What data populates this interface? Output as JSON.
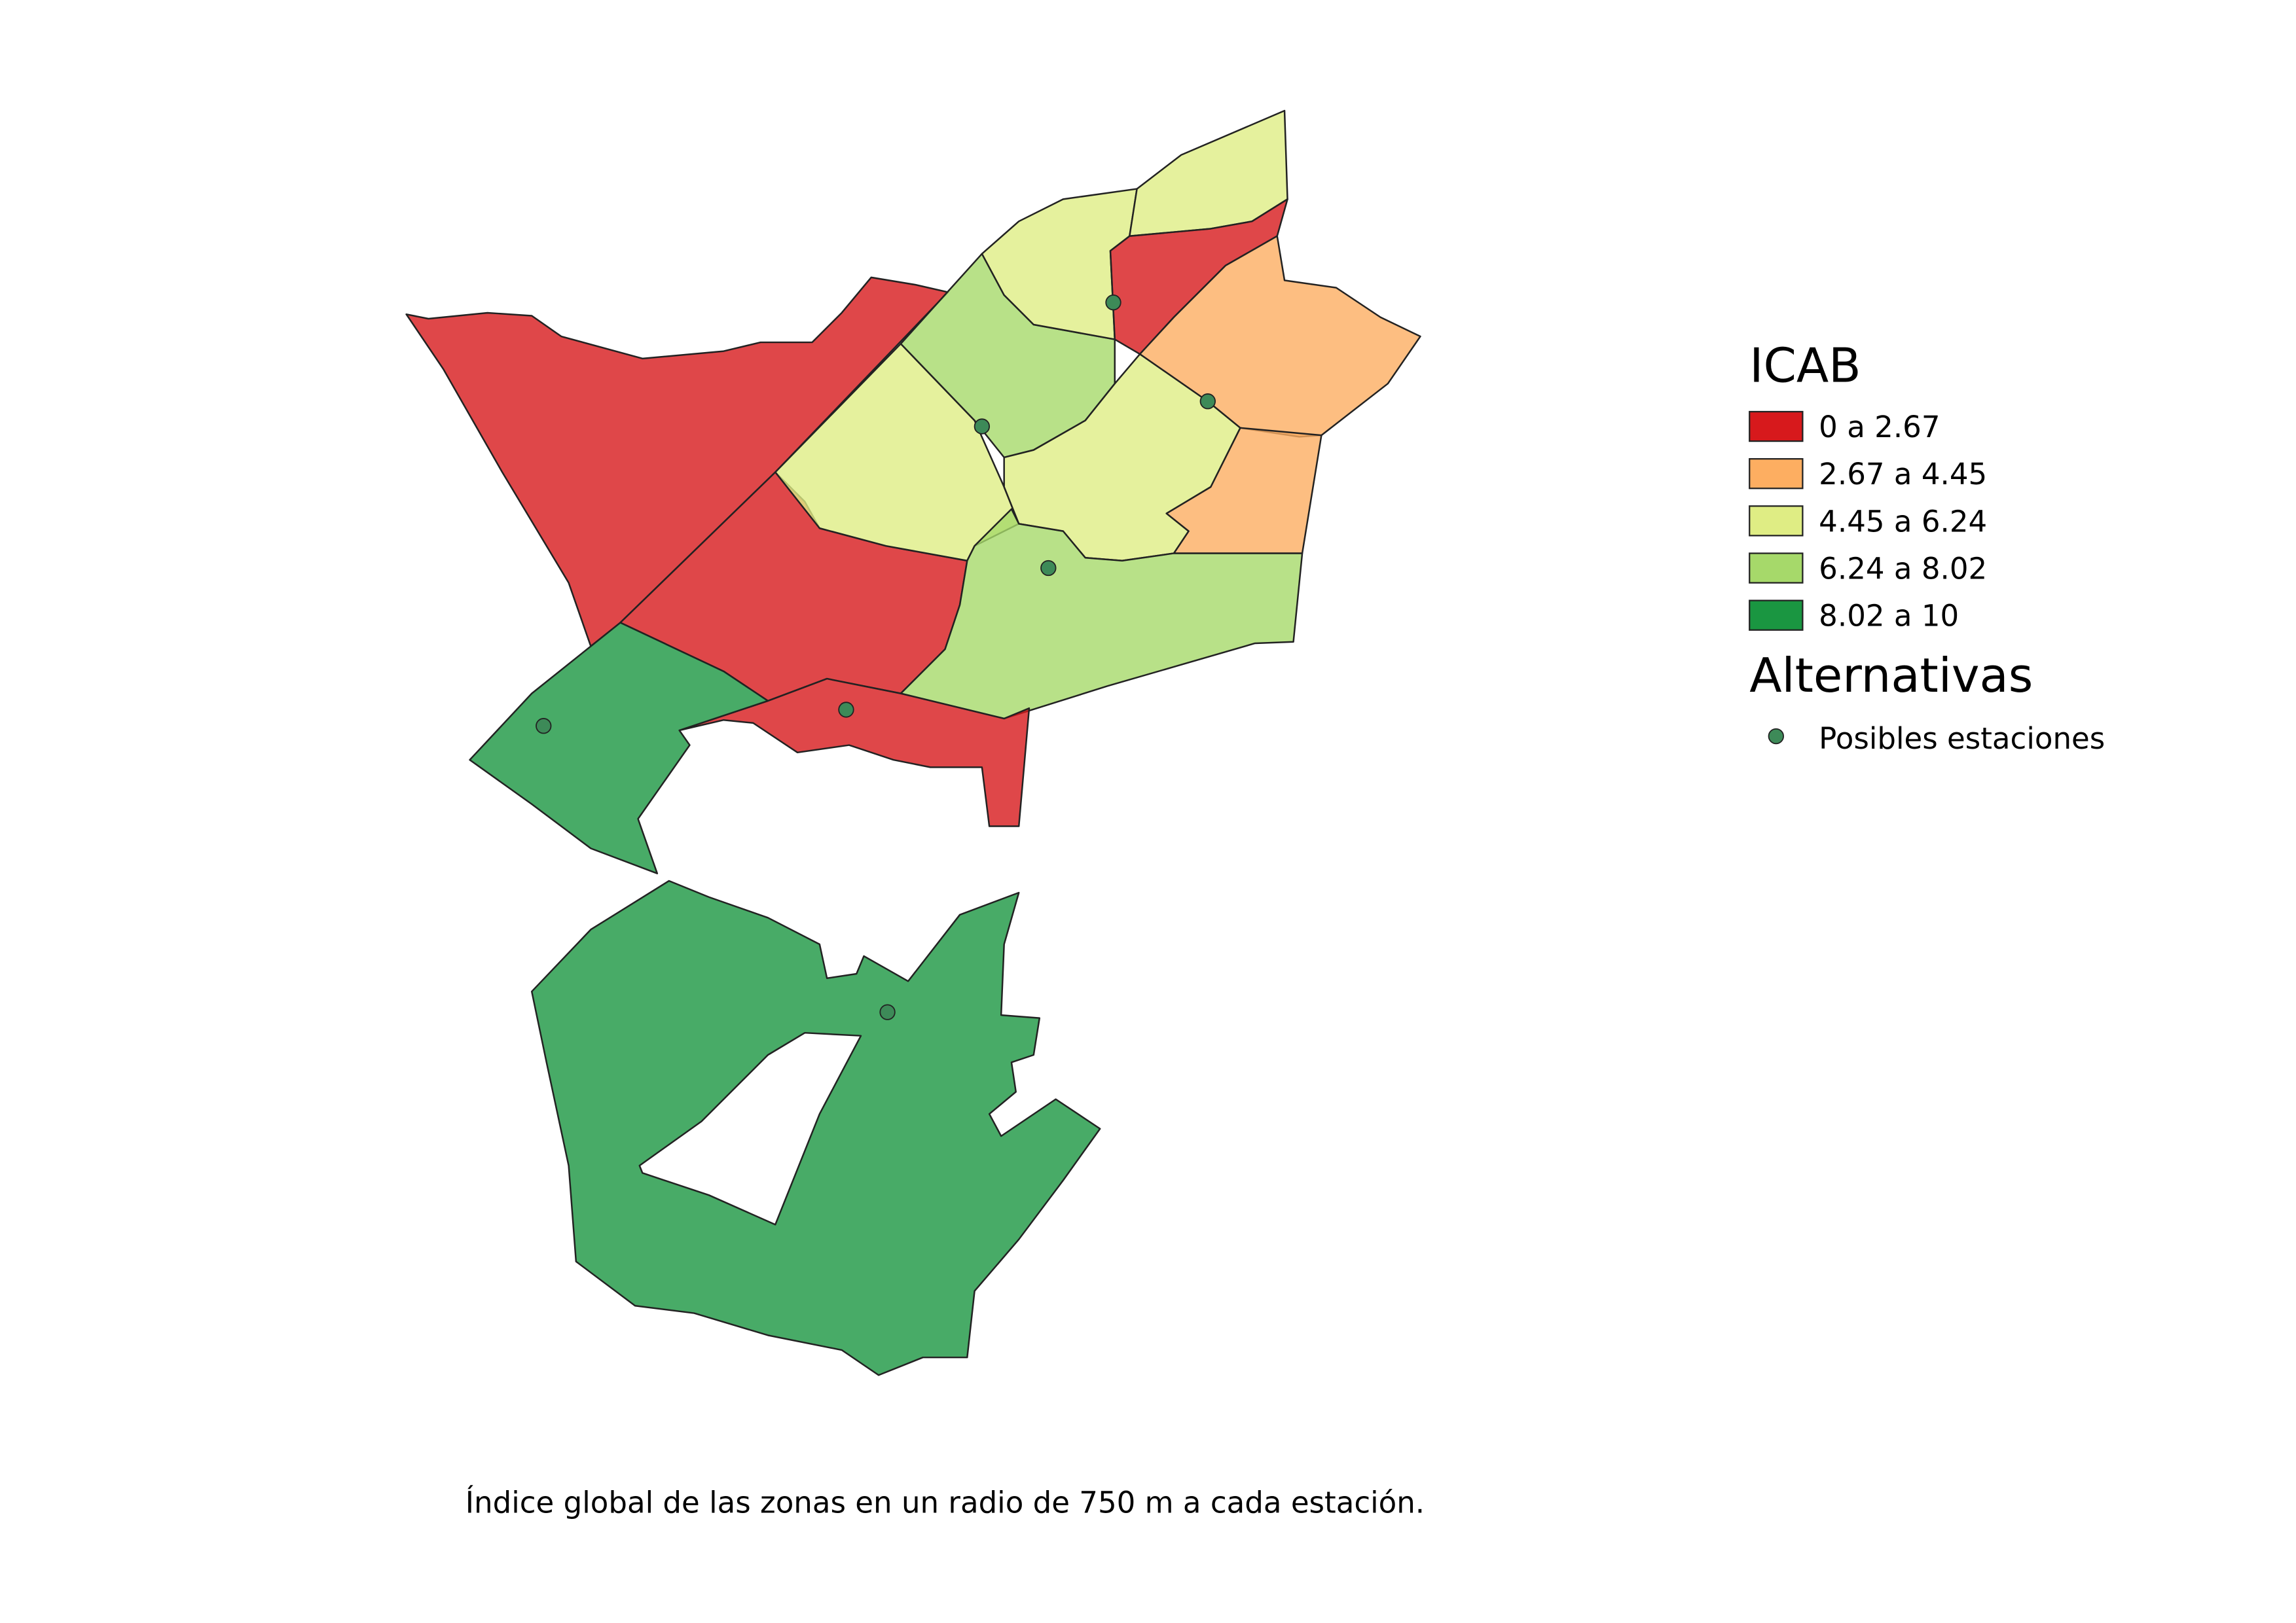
{
  "legend": {
    "title": "ICAB",
    "classes": [
      {
        "label": "0 a 2.67",
        "color": "#d7191c"
      },
      {
        "label": "2.67 a 4.45",
        "color": "#fdae61"
      },
      {
        "label": "4.45 a 6.24",
        "color": "#dfed84"
      },
      {
        "label": "6.24 a 8.02",
        "color": "#a6d96a"
      },
      {
        "label": "8.02 a 10",
        "color": "#1a9641"
      }
    ]
  },
  "alternatives": {
    "title": "Alternativas",
    "label": "Posibles estaciones",
    "color": "#3d8a58"
  },
  "caption": "Índice global de las zonas en un radio de 750 m a cada estación."
}
